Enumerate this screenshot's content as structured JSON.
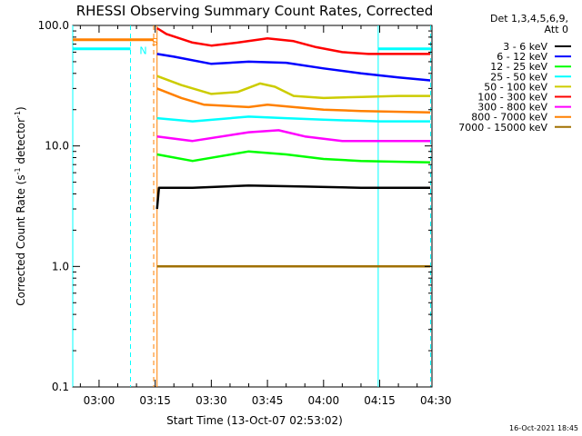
{
  "chart_data": {
    "type": "line",
    "title": "RHESSI Observing Summary Count Rates, Corrected",
    "xlabel": "Start Time (13-Oct-07 02:53:02)",
    "ylabel": "Corrected Count Rate (s",
    "ylabel_sup1": "-1",
    "ylabel_mid": " detector",
    "ylabel_sup2": "-1",
    "ylabel_end": ")",
    "y_scale": "log",
    "ylim": [
      0.1,
      100
    ],
    "xlim_minutes": [
      2.9667,
      98.9667
    ],
    "y_ticks": [
      {
        "v": 100,
        "label": "100.0"
      },
      {
        "v": 10,
        "label": "10.0"
      },
      {
        "v": 1,
        "label": "1.0"
      },
      {
        "v": 0.1,
        "label": "0.1"
      }
    ],
    "x_ticks": [
      {
        "m": 10,
        "label": "03:00"
      },
      {
        "m": 25,
        "label": "03:15"
      },
      {
        "m": 40,
        "label": "03:30"
      },
      {
        "m": 55,
        "label": "03:45"
      },
      {
        "m": 70,
        "label": "04:00"
      },
      {
        "m": 85,
        "label": "04:15"
      },
      {
        "m": 100,
        "label": "04:30"
      }
    ],
    "legend_header": [
      "Det 1,3,4,5,6,9,",
      "Att 0"
    ],
    "legend_position": "right",
    "series": [
      {
        "name": "3 - 6 keV",
        "color": "#000000",
        "points": [
          [
            25.5,
            3.0
          ],
          [
            26,
            4.5
          ],
          [
            35,
            4.5
          ],
          [
            50,
            4.7
          ],
          [
            65,
            4.6
          ],
          [
            80,
            4.5
          ],
          [
            98.5,
            4.5
          ]
        ]
      },
      {
        "name": "6 - 12 keV",
        "color": "#0000ff",
        "points": [
          [
            25.5,
            58
          ],
          [
            30,
            55
          ],
          [
            40,
            48
          ],
          [
            50,
            50
          ],
          [
            60,
            49
          ],
          [
            70,
            44
          ],
          [
            80,
            40
          ],
          [
            90,
            37
          ],
          [
            98.5,
            35
          ]
        ]
      },
      {
        "name": "12 - 25 keV",
        "color": "#00ff00",
        "points": [
          [
            25.5,
            8.5
          ],
          [
            35,
            7.5
          ],
          [
            50,
            9.0
          ],
          [
            60,
            8.5
          ],
          [
            70,
            7.8
          ],
          [
            80,
            7.5
          ],
          [
            98.5,
            7.3
          ]
        ]
      },
      {
        "name": "25 - 50 keV",
        "color": "#00ffff",
        "points": [
          [
            25.5,
            17
          ],
          [
            35,
            16
          ],
          [
            50,
            17.5
          ],
          [
            60,
            17
          ],
          [
            70,
            16.5
          ],
          [
            85,
            16
          ],
          [
            98.5,
            16
          ]
        ]
      },
      {
        "name": "50 - 100 keV",
        "color": "#cccc00",
        "points": [
          [
            25.5,
            38
          ],
          [
            32,
            32
          ],
          [
            40,
            27
          ],
          [
            47,
            28
          ],
          [
            53,
            33
          ],
          [
            57,
            31
          ],
          [
            62,
            26
          ],
          [
            70,
            25
          ],
          [
            80,
            25.5
          ],
          [
            90,
            26
          ],
          [
            98.5,
            26
          ]
        ]
      },
      {
        "name": "100 - 300 keV",
        "color": "#ff0000",
        "points": [
          [
            25.5,
            95
          ],
          [
            28,
            85
          ],
          [
            35,
            72
          ],
          [
            40,
            68
          ],
          [
            47,
            72
          ],
          [
            55,
            78
          ],
          [
            62,
            74
          ],
          [
            68,
            66
          ],
          [
            75,
            60
          ],
          [
            82,
            58
          ],
          [
            98.5,
            58
          ]
        ]
      },
      {
        "name": "300 - 800 keV",
        "color": "#ff00ff",
        "points": [
          [
            25.5,
            12
          ],
          [
            35,
            11
          ],
          [
            50,
            13
          ],
          [
            58,
            13.5
          ],
          [
            65,
            12
          ],
          [
            75,
            11
          ],
          [
            98.5,
            11
          ]
        ]
      },
      {
        "name": "800 - 7000 keV",
        "color": "#ff8000",
        "points": [
          [
            25.5,
            30
          ],
          [
            32,
            25
          ],
          [
            38,
            22
          ],
          [
            50,
            21
          ],
          [
            55,
            22
          ],
          [
            62,
            21
          ],
          [
            70,
            20
          ],
          [
            80,
            19.5
          ],
          [
            98.5,
            19
          ]
        ]
      },
      {
        "name": "7000 - 15000 keV",
        "color": "#a07000",
        "points": [
          [
            25.5,
            1.0
          ],
          [
            98.5,
            1.0
          ]
        ]
      }
    ],
    "flag_lines": [
      {
        "color": "#00ffff",
        "points": [
          [
            2.9667,
            64
          ],
          [
            18.4,
            64
          ]
        ]
      },
      {
        "color": "#00ffff",
        "points": [
          [
            84.6,
            64
          ],
          [
            98.9,
            64
          ]
        ]
      },
      {
        "color": "#ff8000",
        "points": [
          [
            2.9667,
            76
          ],
          [
            24.6,
            76
          ]
        ]
      }
    ],
    "flag_labels": [
      {
        "label": "N",
        "color": "#00ffff",
        "m": 21.8,
        "v": 64
      },
      {
        "label": "S",
        "color": "#ff8000",
        "m": 24.9,
        "v": 76
      }
    ],
    "vertical_lines": [
      {
        "m": 2.9667,
        "color": "#00ffff",
        "dash": false
      },
      {
        "m": 18.4,
        "color": "#00ffff",
        "dash": true
      },
      {
        "m": 24.6,
        "color": "#ff8000",
        "dash": true
      },
      {
        "m": 25.5,
        "color": "#ff8000",
        "dash": false
      },
      {
        "m": 84.6,
        "color": "#00ffff",
        "dash": false
      },
      {
        "m": 98.6,
        "color": "#00ffff",
        "dash": true
      }
    ]
  },
  "footer_date": "16-Oct-2021 18:45"
}
